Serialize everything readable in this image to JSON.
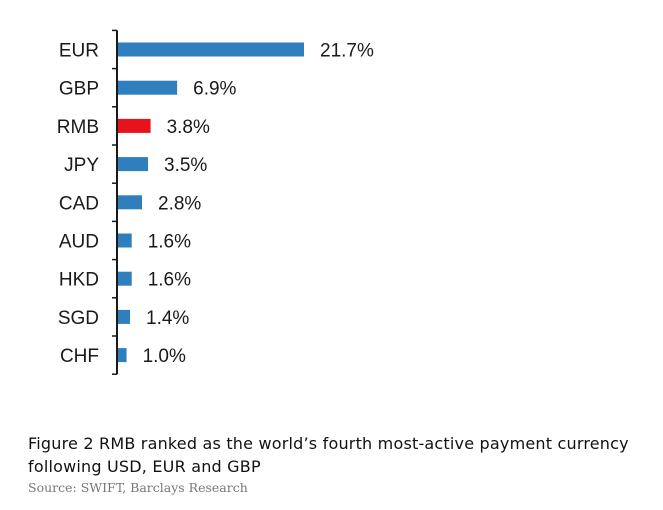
{
  "chart_data": {
    "type": "bar",
    "orientation": "horizontal",
    "categories": [
      "EUR",
      "GBP",
      "RMB",
      "JPY",
      "CAD",
      "AUD",
      "HKD",
      "SGD",
      "CHF"
    ],
    "values": [
      21.7,
      6.9,
      3.8,
      3.5,
      2.8,
      1.6,
      1.6,
      1.4,
      1.0
    ],
    "value_labels": [
      "21.7%",
      "6.9%",
      "3.8%",
      "3.5%",
      "2.8%",
      "1.6%",
      "1.6%",
      "1.4%",
      "1.0%"
    ],
    "highlight_category": "RMB",
    "colors": {
      "bar": "#2f7ebd",
      "highlight": "#e8121a",
      "axis": "#1a1a1a"
    },
    "grid": false,
    "legend": "none"
  },
  "caption": {
    "text": "Figure 2 RMB ranked as the world’s fourth most-active payment currency following USD, EUR and GBP",
    "source": "Source: SWIFT, Barclays Research"
  }
}
